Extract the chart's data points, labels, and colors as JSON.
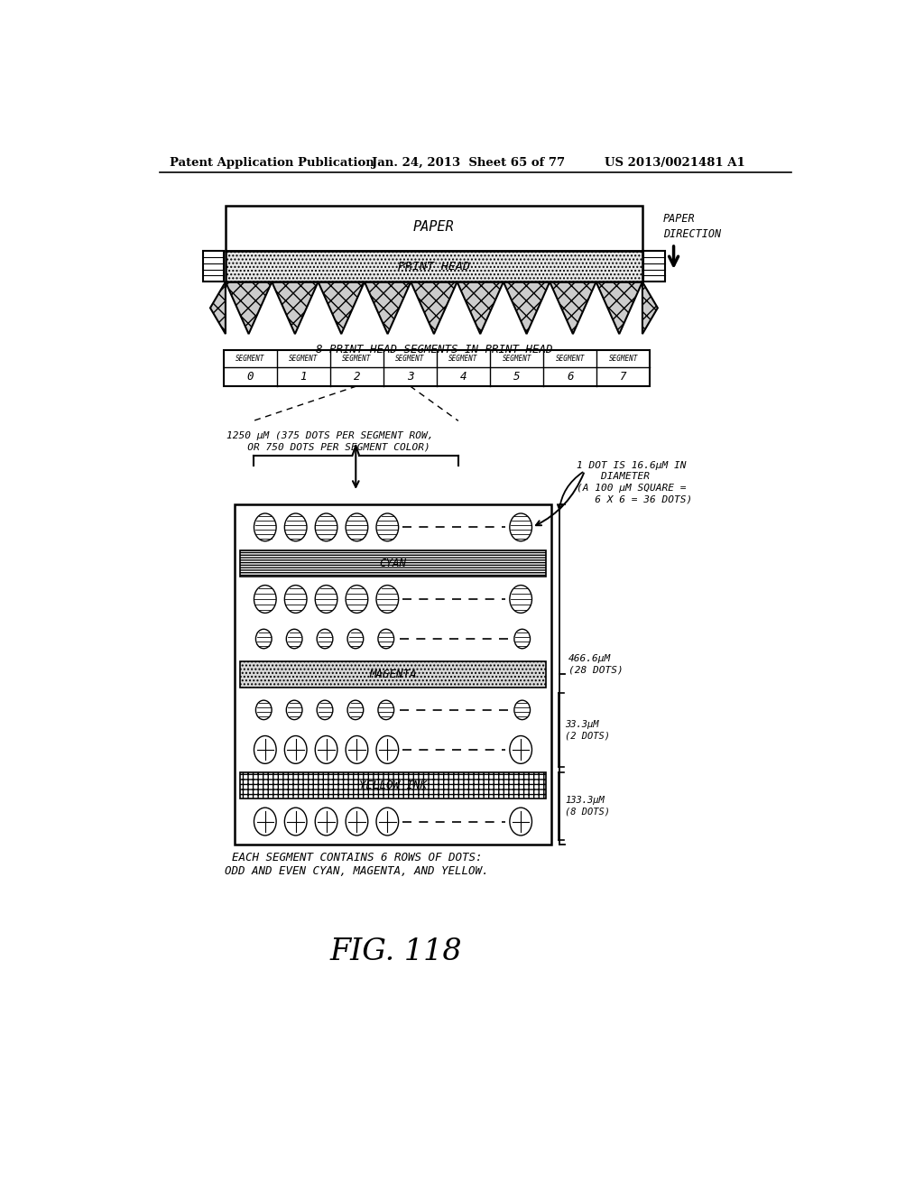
{
  "title_header": "Patent Application Publication",
  "date_header": "Jan. 24, 2013  Sheet 65 of 77",
  "patent_header": "US 2013/0021481 A1",
  "fig_label": "FIG. 118",
  "paper_label": "PAPER",
  "paper_direction_label": "PAPER\nDIRECTION",
  "print_head_label": "PRINT HEAD",
  "segments_title": "8 PRINT HEAD SEGMENTS IN PRINT HEAD",
  "dim_label": "1250 μM (375 DOTS PER SEGMENT ROW,\n   OR 750 DOTS PER SEGMENT COLOR)",
  "dot_label": "1 DOT IS 16.6μM IN\n    DIAMETER\n(A 100 μM SQUARE =\n   6 X 6 = 36 DOTS)",
  "cyan_label": "CYAN",
  "magenta_label": "MAGENTA",
  "yellow_label": "YELLOW INK",
  "dim466_label": "466.6μM\n(28 DOTS)",
  "dim33_label": "33.3μM\n(2 DOTS)",
  "dim133_label": "133.3μM\n(8 DOTS)",
  "caption_line1": "EACH SEGMENT CONTAINS 6 ROWS OF DOTS:",
  "caption_line2": "ODD AND EVEN CYAN, MAGENTA, AND YELLOW.",
  "bg_color": "#ffffff"
}
